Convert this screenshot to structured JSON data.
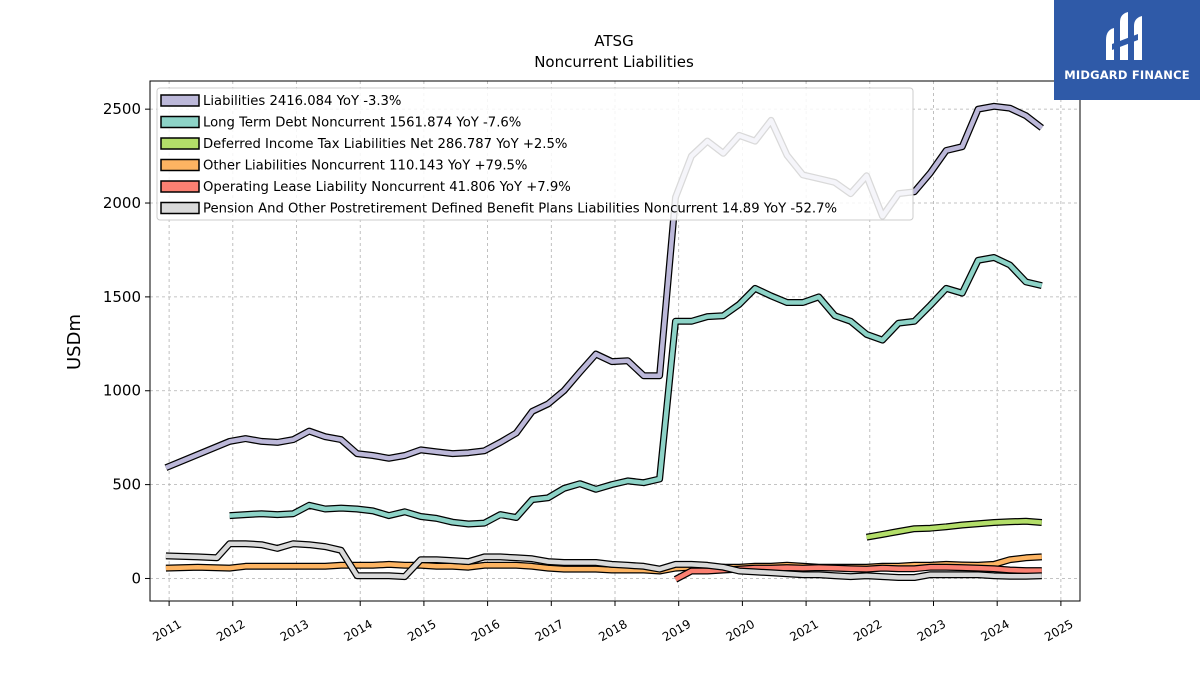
{
  "chart_data": {
    "type": "line",
    "title": "ATSG",
    "subtitle": "Noncurrent  Liabilities",
    "ylabel": "USDm",
    "xlabel": "",
    "xlim": [
      2010.7,
      2025.3
    ],
    "ylim": [
      -120,
      2650
    ],
    "yticks": [
      0,
      500,
      1000,
      1500,
      2000,
      2500
    ],
    "xticks": [
      2011,
      2012,
      2013,
      2014,
      2015,
      2016,
      2017,
      2018,
      2019,
      2020,
      2021,
      2022,
      2023,
      2024,
      2025
    ],
    "grid": true,
    "legend_position": "top-left",
    "series": [
      {
        "name": "Liabilities  2416.084 YoY -3.3%",
        "color": "#bcb8d9",
        "x": [
          2010.95,
          2011.95,
          2012.2,
          2012.45,
          2012.7,
          2012.95,
          2013.2,
          2013.45,
          2013.7,
          2013.95,
          2014.2,
          2014.45,
          2014.7,
          2014.95,
          2015.2,
          2015.45,
          2015.7,
          2015.95,
          2016.2,
          2016.45,
          2016.7,
          2016.95,
          2017.2,
          2017.45,
          2017.7,
          2017.95,
          2018.2,
          2018.45,
          2018.7,
          2018.95,
          2019.2,
          2019.45,
          2019.7,
          2019.95,
          2020.2,
          2020.45,
          2020.7,
          2020.95,
          2021.2,
          2021.45,
          2021.7,
          2021.95,
          2022.2,
          2022.45,
          2022.7,
          2022.95,
          2023.2,
          2023.45,
          2023.7,
          2023.95,
          2024.2,
          2024.45,
          2024.7
        ],
        "values": [
          590,
          730,
          745,
          730,
          725,
          740,
          785,
          755,
          740,
          665,
          655,
          640,
          655,
          685,
          675,
          665,
          670,
          680,
          725,
          775,
          890,
          930,
          1000,
          1100,
          1195,
          1155,
          1160,
          1080,
          1080,
          2030,
          2250,
          2330,
          2265,
          2360,
          2330,
          2440,
          2255,
          2150,
          2130,
          2110,
          2050,
          2145,
          1930,
          2050,
          2060,
          2160,
          2280,
          2300,
          2500,
          2515,
          2505,
          2465,
          2400
        ]
      },
      {
        "name": "Long Term Debt Noncurrent  1561.874 YoY -7.6%",
        "color": "#8dd3c7",
        "x": [
          2011.95,
          2012.2,
          2012.45,
          2012.7,
          2012.95,
          2013.2,
          2013.45,
          2013.7,
          2013.95,
          2014.2,
          2014.45,
          2014.7,
          2014.95,
          2015.2,
          2015.45,
          2015.7,
          2015.95,
          2016.2,
          2016.45,
          2016.7,
          2016.95,
          2017.2,
          2017.45,
          2017.7,
          2017.95,
          2018.2,
          2018.45,
          2018.7,
          2018.95,
          2019.2,
          2019.45,
          2019.7,
          2019.95,
          2020.2,
          2020.45,
          2020.7,
          2020.95,
          2021.2,
          2021.45,
          2021.7,
          2021.95,
          2022.2,
          2022.45,
          2022.7,
          2022.95,
          2023.2,
          2023.45,
          2023.7,
          2023.95,
          2024.2,
          2024.45,
          2024.7
        ],
        "values": [
          335,
          340,
          345,
          340,
          345,
          390,
          370,
          375,
          370,
          360,
          335,
          355,
          330,
          320,
          300,
          290,
          295,
          340,
          325,
          420,
          430,
          480,
          505,
          475,
          500,
          520,
          510,
          530,
          1370,
          1370,
          1395,
          1400,
          1460,
          1545,
          1505,
          1470,
          1470,
          1500,
          1400,
          1370,
          1300,
          1270,
          1360,
          1370,
          1455,
          1545,
          1520,
          1695,
          1710,
          1670,
          1580,
          1560
        ]
      },
      {
        "name": "Deferred Income Tax Liabilities Net  286.787 YoY +2.5%",
        "color": "#b3de69",
        "x": [
          2021.95,
          2022.2,
          2022.45,
          2022.7,
          2022.95,
          2023.2,
          2023.45,
          2023.7,
          2023.95,
          2024.2,
          2024.45,
          2024.7
        ],
        "values": [
          220,
          235,
          250,
          265,
          268,
          275,
          285,
          292,
          298,
          302,
          305,
          298
        ]
      },
      {
        "name": "Other Liabilities Noncurrent  110.143 YoY +79.5%",
        "color": "#fdb462",
        "x": [
          2010.95,
          2011.45,
          2011.95,
          2012.2,
          2012.45,
          2012.7,
          2012.95,
          2013.2,
          2013.45,
          2013.7,
          2013.95,
          2014.2,
          2014.45,
          2014.7,
          2014.95,
          2015.2,
          2015.45,
          2015.7,
          2015.95,
          2016.2,
          2016.45,
          2016.7,
          2016.95,
          2017.2,
          2017.45,
          2017.7,
          2017.95,
          2018.2,
          2018.45,
          2018.7,
          2018.95,
          2019.2,
          2019.45,
          2019.7,
          2019.95,
          2020.2,
          2020.45,
          2020.7,
          2020.95,
          2021.2,
          2021.45,
          2021.7,
          2021.95,
          2022.2,
          2022.45,
          2022.7,
          2022.95,
          2023.2,
          2023.45,
          2023.7,
          2023.95,
          2024.2,
          2024.45,
          2024.7
        ],
        "values": [
          55,
          60,
          55,
          65,
          65,
          65,
          65,
          65,
          65,
          70,
          70,
          70,
          75,
          70,
          70,
          65,
          65,
          60,
          70,
          70,
          70,
          65,
          55,
          50,
          50,
          50,
          45,
          45,
          45,
          40,
          55,
          60,
          60,
          60,
          60,
          65,
          65,
          70,
          65,
          60,
          60,
          60,
          60,
          65,
          65,
          70,
          70,
          75,
          72,
          70,
          75,
          100,
          110,
          115
        ]
      },
      {
        "name": "Operating Lease Liability Noncurrent  41.806 YoY +7.9%",
        "color": "#fb8072",
        "x": [
          2018.95,
          2019.2,
          2019.45,
          2019.7,
          2019.95,
          2020.2,
          2020.45,
          2020.7,
          2020.95,
          2021.2,
          2021.45,
          2021.7,
          2021.95,
          2022.2,
          2022.45,
          2022.7,
          2022.95,
          2023.2,
          2023.45,
          2023.7,
          2023.95,
          2024.2,
          2024.45,
          2024.7
        ],
        "values": [
          -5,
          40,
          40,
          45,
          50,
          55,
          55,
          58,
          55,
          58,
          55,
          52,
          50,
          55,
          52,
          52,
          60,
          60,
          58,
          55,
          52,
          45,
          42,
          42
        ]
      },
      {
        "name": "Pension And Other Postretirement Defined Benefit Plans Liabilities Noncurrent  14.89 YoY -52.7%",
        "color": "#d9d9d9",
        "x": [
          2010.95,
          2011.45,
          2011.75,
          2011.95,
          2012.2,
          2012.45,
          2012.7,
          2012.95,
          2013.2,
          2013.45,
          2013.7,
          2013.95,
          2014.2,
          2014.45,
          2014.7,
          2014.95,
          2015.2,
          2015.45,
          2015.7,
          2015.95,
          2016.2,
          2016.45,
          2016.7,
          2016.95,
          2017.2,
          2017.45,
          2017.7,
          2017.95,
          2018.2,
          2018.45,
          2018.7,
          2018.95,
          2019.2,
          2019.45,
          2019.7,
          2019.95,
          2020.2,
          2020.45,
          2020.7,
          2020.95,
          2021.2,
          2021.45,
          2021.7,
          2021.95,
          2022.2,
          2022.45,
          2022.7,
          2022.95,
          2023.2,
          2023.45,
          2023.7,
          2023.95,
          2024.2,
          2024.45,
          2024.7
        ],
        "values": [
          120,
          115,
          110,
          185,
          185,
          180,
          160,
          185,
          180,
          170,
          150,
          15,
          15,
          15,
          10,
          100,
          100,
          95,
          90,
          115,
          115,
          110,
          105,
          90,
          85,
          85,
          85,
          75,
          70,
          65,
          50,
          75,
          75,
          70,
          60,
          40,
          35,
          30,
          25,
          20,
          20,
          15,
          10,
          15,
          10,
          5,
          5,
          20,
          20,
          20,
          20,
          15,
          12,
          12,
          15
        ]
      }
    ]
  },
  "logo": {
    "text": "MIDGARD FINANCE",
    "color": "#2f5aa8"
  }
}
